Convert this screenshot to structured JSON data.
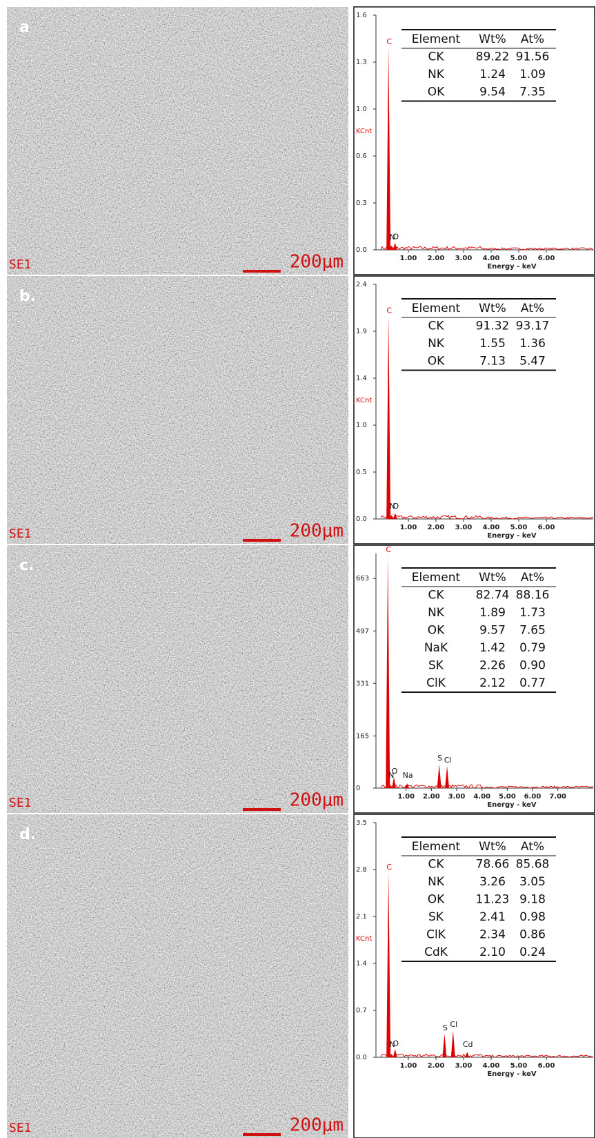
{
  "chart_data": [
    {
      "type": "bar",
      "panel": "a",
      "image_label": "SE1",
      "scale_bar": "200μm",
      "ylabel": "KCnt",
      "xlabel": "Energy - keV",
      "ylim": [
        0,
        1.625
      ],
      "yticks": [
        {
          "value": 0,
          "label": "0.0"
        },
        {
          "value": 0.325,
          "label": "0.3"
        },
        {
          "value": 0.65,
          "label": "0.6"
        },
        {
          "value": 0.975,
          "label": "1.0"
        },
        {
          "value": 1.3,
          "label": "1.3"
        },
        {
          "value": 1.625,
          "label": "1.6"
        }
      ],
      "xlim": [
        0,
        7.7
      ],
      "xticks": [
        {
          "value": 1,
          "label": "1.00"
        },
        {
          "value": 2,
          "label": "2.00"
        },
        {
          "value": 3,
          "label": "3.00"
        },
        {
          "value": 4,
          "label": "4.00"
        },
        {
          "value": 5,
          "label": "5.00"
        },
        {
          "value": 6,
          "label": "6.00"
        }
      ],
      "labels": [
        "C",
        "N",
        "O"
      ],
      "x": [
        0.28,
        0.39,
        0.52
      ],
      "values": [
        1.4,
        0.03,
        0.05
      ],
      "color": "#e00000",
      "table": {
        "header": [
          "Element",
          "Wt%",
          "At%"
        ],
        "rows": [
          [
            "CK",
            "89.22",
            "91.56"
          ],
          [
            "NK",
            "1.24",
            "1.09"
          ],
          [
            "OK",
            "9.54",
            "7.35"
          ]
        ]
      }
    },
    {
      "type": "bar",
      "panel": "b.",
      "image_label": "SE1",
      "scale_bar": "200μm",
      "ylabel": "KCnt",
      "xlabel": "Energy - keV",
      "ylim": [
        0,
        2.375
      ],
      "yticks": [
        {
          "value": 0,
          "label": "0.0"
        },
        {
          "value": 0.475,
          "label": "0.5"
        },
        {
          "value": 0.95,
          "label": "1.0"
        },
        {
          "value": 1.425,
          "label": "1.4"
        },
        {
          "value": 1.9,
          "label": "1.9"
        },
        {
          "value": 2.375,
          "label": "2.4"
        }
      ],
      "xlim": [
        0,
        7.7
      ],
      "xticks": [
        {
          "value": 1,
          "label": "1.00"
        },
        {
          "value": 2,
          "label": "2.00"
        },
        {
          "value": 3,
          "label": "3.00"
        },
        {
          "value": 4,
          "label": "4.00"
        },
        {
          "value": 5,
          "label": "5.00"
        },
        {
          "value": 6,
          "label": "6.00"
        }
      ],
      "labels": [
        "C",
        "N",
        "O"
      ],
      "x": [
        0.28,
        0.39,
        0.52
      ],
      "values": [
        2.05,
        0.04,
        0.06
      ],
      "color": "#e00000",
      "table": {
        "header": [
          "Element",
          "Wt%",
          "At%"
        ],
        "rows": [
          [
            "CK",
            "91.32",
            "93.17"
          ],
          [
            "NK",
            "1.55",
            "1.36"
          ],
          [
            "OK",
            "7.13",
            "5.47"
          ]
        ]
      }
    },
    {
      "type": "bar",
      "panel": "c.",
      "image_label": "SE1",
      "scale_bar": "200μm",
      "xlabel": "Energy - keV",
      "ylim": [
        0,
        742
      ],
      "yticks": [
        0,
        165,
        331,
        497,
        663
      ],
      "xlim": [
        0,
        8.4
      ],
      "xticks": [
        {
          "value": 1,
          "label": "1.00"
        },
        {
          "value": 2,
          "label": "2.00"
        },
        {
          "value": 3,
          "label": "3.00"
        },
        {
          "value": 4,
          "label": "4.00"
        },
        {
          "value": 5,
          "label": "5.00"
        },
        {
          "value": 6,
          "label": "6.00"
        },
        {
          "value": 7,
          "label": "7.00"
        }
      ],
      "labels": [
        "C",
        "N",
        "O",
        "Na",
        "S",
        "Cl"
      ],
      "x": [
        0.28,
        0.39,
        0.52,
        1.04,
        2.31,
        2.62
      ],
      "values": [
        735,
        10,
        35,
        15,
        76,
        70
      ],
      "color": "#e00000",
      "table": {
        "header": [
          "Element",
          "Wt%",
          "At%"
        ],
        "rows": [
          [
            "CK",
            "82.74",
            "88.16"
          ],
          [
            "NK",
            "1.89",
            "1.73"
          ],
          [
            "OK",
            "9.57",
            "7.65"
          ],
          [
            "NaK",
            "1.42",
            "0.79"
          ],
          [
            "SK",
            "2.26",
            "0.90"
          ],
          [
            "ClK",
            "2.12",
            "0.77"
          ]
        ]
      }
    },
    {
      "type": "bar",
      "panel": "d.",
      "image_label": "SE1",
      "scale_bar": "200μm",
      "ylabel": "KCnt",
      "xlabel": "Energy - keV",
      "ylim": [
        0,
        3.5
      ],
      "yticks": [
        {
          "value": 0,
          "label": "0.0"
        },
        0.7,
        1.4,
        2.1,
        2.8,
        3.5
      ],
      "xlim": [
        0,
        7.7
      ],
      "xticks": [
        {
          "value": 1,
          "label": "1.00"
        },
        {
          "value": 2,
          "label": "2.00"
        },
        {
          "value": 3,
          "label": "3.00"
        },
        {
          "value": 4,
          "label": "4.00"
        },
        {
          "value": 5,
          "label": "5.00"
        },
        {
          "value": 6,
          "label": "6.00"
        }
      ],
      "labels": [
        "C",
        "N",
        "O",
        "S",
        "Cl",
        "Cd"
      ],
      "x": [
        0.28,
        0.39,
        0.52,
        2.31,
        2.62,
        3.13
      ],
      "values": [
        2.75,
        0.05,
        0.12,
        0.35,
        0.4,
        0.08
      ],
      "color": "#e00000",
      "table": {
        "header": [
          "Element",
          "Wt%",
          "At%"
        ],
        "rows": [
          [
            "CK",
            "78.66",
            "85.68"
          ],
          [
            "NK",
            "3.26",
            "3.05"
          ],
          [
            "OK",
            "11.23",
            "9.18"
          ],
          [
            "SK",
            "2.41",
            "0.98"
          ],
          [
            "ClK",
            "2.34",
            "0.86"
          ],
          [
            "CdK",
            "2.10",
            "0.24"
          ]
        ]
      }
    }
  ]
}
